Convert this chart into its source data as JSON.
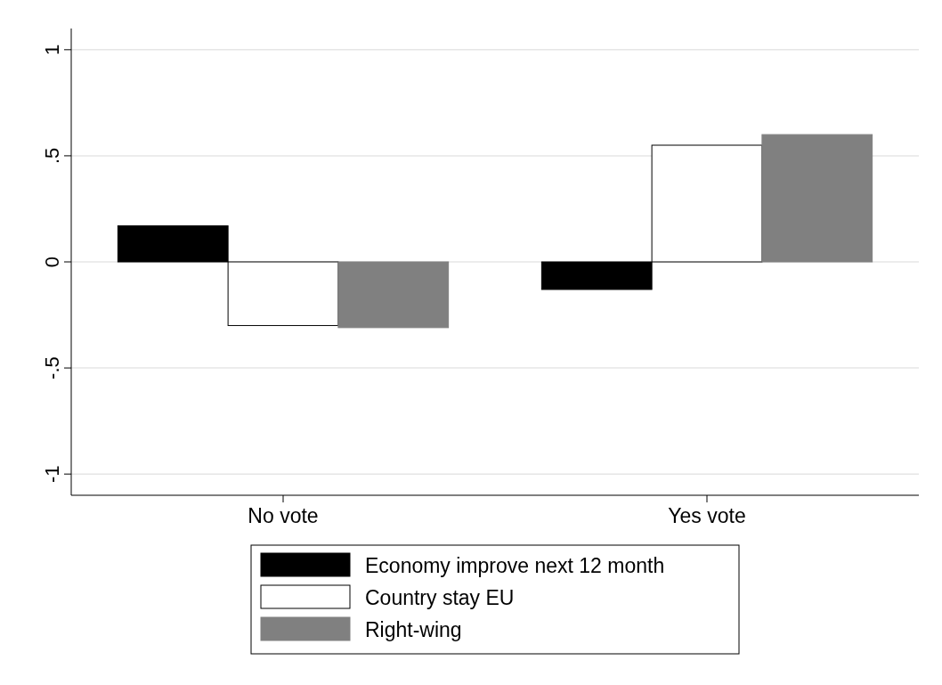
{
  "chart_data": {
    "type": "bar",
    "categories": [
      "No vote",
      "Yes vote"
    ],
    "series": [
      {
        "name": "Economy improve next 12 month",
        "color": "#000000",
        "values": [
          0.17,
          -0.13
        ]
      },
      {
        "name": "Country stay EU",
        "color": "#ffffff",
        "values": [
          -0.3,
          0.55
        ]
      },
      {
        "name": "Right-wing",
        "color": "#808080",
        "values": [
          -0.31,
          0.6
        ]
      }
    ],
    "ylim": [
      -1.1,
      1.1
    ],
    "yticks": [
      -1,
      {
        "value": -0.5,
        "label": "-.5"
      },
      0,
      {
        "value": 0.5,
        "label": ".5"
      },
      1
    ],
    "grid": "y",
    "legend": "bottom"
  }
}
